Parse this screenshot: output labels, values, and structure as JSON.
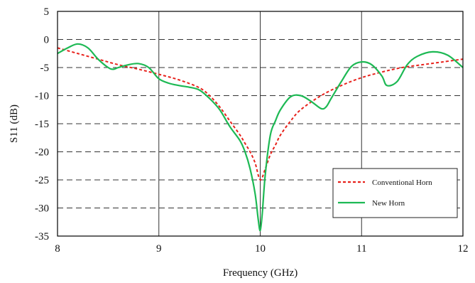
{
  "chart_data": {
    "type": "line",
    "xlabel": "Frequency (GHz)",
    "ylabel": "S11 (dB)",
    "xlim": [
      8,
      12
    ],
    "ylim": [
      -35,
      5
    ],
    "xticks": [
      8,
      9,
      10,
      11,
      12
    ],
    "yticks": [
      5,
      0,
      -5,
      -10,
      -15,
      -20,
      -25,
      -30,
      -35
    ],
    "grid": {
      "vertical": "solid at integer GHz",
      "horizontal": "dashed every 5 dB"
    },
    "legend": {
      "placement": "lower-right",
      "entries": [
        "Conventional Horn",
        "New Horn"
      ]
    },
    "series": [
      {
        "name": "Conventional Horn",
        "color": "#e8221c",
        "style": "dashed",
        "x": [
          8.0,
          8.2,
          8.4,
          8.6,
          8.8,
          9.0,
          9.2,
          9.4,
          9.5,
          9.6,
          9.7,
          9.8,
          9.85,
          9.9,
          9.95,
          10.0,
          10.05,
          10.1,
          10.15,
          10.2,
          10.3,
          10.4,
          10.6,
          10.8,
          11.0,
          11.2,
          11.4,
          11.6,
          11.8,
          12.0
        ],
        "y": [
          -1.5,
          -2.5,
          -3.5,
          -4.5,
          -5.3,
          -6.2,
          -7.2,
          -8.6,
          -10.0,
          -12.0,
          -14.5,
          -17.0,
          -18.5,
          -20.0,
          -22.0,
          -25.0,
          -23.0,
          -20.5,
          -18.8,
          -17.0,
          -14.5,
          -12.5,
          -10.0,
          -8.2,
          -6.8,
          -5.8,
          -5.0,
          -4.5,
          -4.0,
          -3.5
        ]
      },
      {
        "name": "New Horn",
        "color": "#1db954",
        "style": "solid",
        "x": [
          8.0,
          8.1,
          8.2,
          8.3,
          8.4,
          8.5,
          8.55,
          8.6,
          8.7,
          8.8,
          8.9,
          9.0,
          9.1,
          9.2,
          9.3,
          9.4,
          9.5,
          9.6,
          9.7,
          9.8,
          9.85,
          9.9,
          9.95,
          9.98,
          10.0,
          10.02,
          10.05,
          10.1,
          10.15,
          10.2,
          10.3,
          10.4,
          10.5,
          10.6,
          10.65,
          10.7,
          10.8,
          10.9,
          11.0,
          11.1,
          11.2,
          11.25,
          11.35,
          11.45,
          11.55,
          11.7,
          11.85,
          12.0
        ],
        "y": [
          -2.5,
          -1.5,
          -0.8,
          -1.5,
          -3.5,
          -5.0,
          -5.3,
          -5.0,
          -4.5,
          -4.3,
          -5.0,
          -7.0,
          -7.8,
          -8.2,
          -8.5,
          -9.0,
          -10.5,
          -12.5,
          -15.5,
          -18.0,
          -20.0,
          -23.0,
          -27.5,
          -32.0,
          -34.0,
          -31.0,
          -24.0,
          -17.0,
          -14.5,
          -12.5,
          -10.2,
          -10.0,
          -11.0,
          -12.3,
          -12.0,
          -10.5,
          -7.5,
          -4.8,
          -4.0,
          -4.5,
          -6.5,
          -8.2,
          -7.5,
          -4.5,
          -3.0,
          -2.2,
          -2.8,
          -5.0
        ]
      }
    ]
  }
}
